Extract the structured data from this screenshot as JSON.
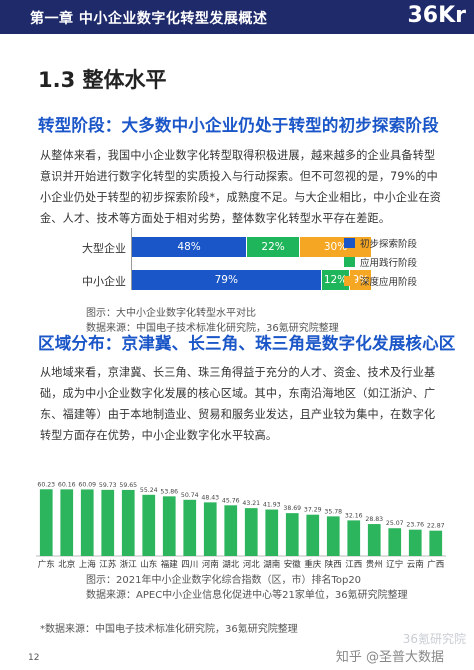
{
  "header": {
    "chapter_title": "第一章 中小企业数字化转型发展概述",
    "logo": "36Kr"
  },
  "section_heading": "1.3 整体水平",
  "part1": {
    "subheading": "转型阶段：大多数中小企业仍处于转型的初步探索阶段",
    "paragraph": "从整体来看，我国中小企业数字化转型取得积极进展，越来越多的企业具备转型意识并开始进行数字化转型的实质投入与行动探索。但不可忽视的是，79%的中小企业仍处于转型的初步探索阶段*，成熟度不足。与大企业相比，中小企业在资金、人才、技术等方面处于相对劣势，整体数字化转型水平存在差距。",
    "caption_line1": "图示：大中小企业数字化转型水平对比",
    "caption_line2": "数据来源：中国电子技术标准化研究院，36氪研究院整理"
  },
  "stacked_chart": {
    "rows": [
      {
        "label": "大型企业",
        "values": [
          48,
          22,
          30
        ],
        "value_labels": [
          "48%",
          "22%",
          "30%"
        ]
      },
      {
        "label": "中小企业",
        "values": [
          79,
          12,
          9
        ],
        "value_labels": [
          "79%",
          "12%",
          "9%"
        ]
      }
    ],
    "series": [
      {
        "name": "初步探索阶段",
        "color": "#1a56c7"
      },
      {
        "name": "应用践行阶段",
        "color": "#1fb55a"
      },
      {
        "name": "深度应用阶段",
        "color": "#f5a623"
      }
    ]
  },
  "part2": {
    "subheading": "区域分布：京津冀、长三角、珠三角是数字化发展核心区",
    "paragraph": "从地域来看，京津冀、长三角、珠三角得益于充分的人才、资金、技术及行业基础，成为中小企业数字化发展的核心区域。其中，东南沿海地区（如江浙沪、广东、福建等）由于本地制造业、贸易和服务业发达，且产业较为集中，在数字化转型方面存在优势，中小企业数字化水平较高。",
    "caption_line1": "图示：2021年中小企业数字化综合指数（区，市）排名Top20",
    "caption_line2": "数据来源：APEC中小企业信息化促进中心等21家单位，36氪研究院整理"
  },
  "chart_data": {
    "type": "bar",
    "categories": [
      "广东",
      "北京",
      "上海",
      "江苏",
      "浙江",
      "山东",
      "福建",
      "四川",
      "河南",
      "湖北",
      "河北",
      "湖南",
      "安徽",
      "重庆",
      "陕西",
      "江西",
      "贵州",
      "辽宁",
      "云南",
      "广西"
    ],
    "values": [
      60.23,
      60.16,
      60.09,
      59.73,
      59.65,
      55.24,
      53.86,
      50.74,
      48.43,
      45.76,
      43.21,
      41.93,
      38.69,
      37.29,
      35.78,
      32.16,
      28.83,
      25.07,
      23.76,
      22.87
    ],
    "value_labels": [
      "60.23",
      "60.16",
      "60.09",
      "59.73",
      "59.65",
      "55.24",
      "53.86",
      "50.74",
      "48.43",
      "45.76",
      "43.21",
      "41.93",
      "38.69",
      "37.29",
      "35.78",
      "32.16",
      "28.83",
      "25.07",
      "23.76",
      "22.87"
    ],
    "color": "#2db55d",
    "ylim": [
      0,
      65
    ]
  },
  "footnote": "*数据来源：中国电子技术标准化研究院，36氪研究院整理",
  "page_number": "12",
  "watermark_main": "知乎 @圣普大数据",
  "watermark_sub": "36氪研究院"
}
